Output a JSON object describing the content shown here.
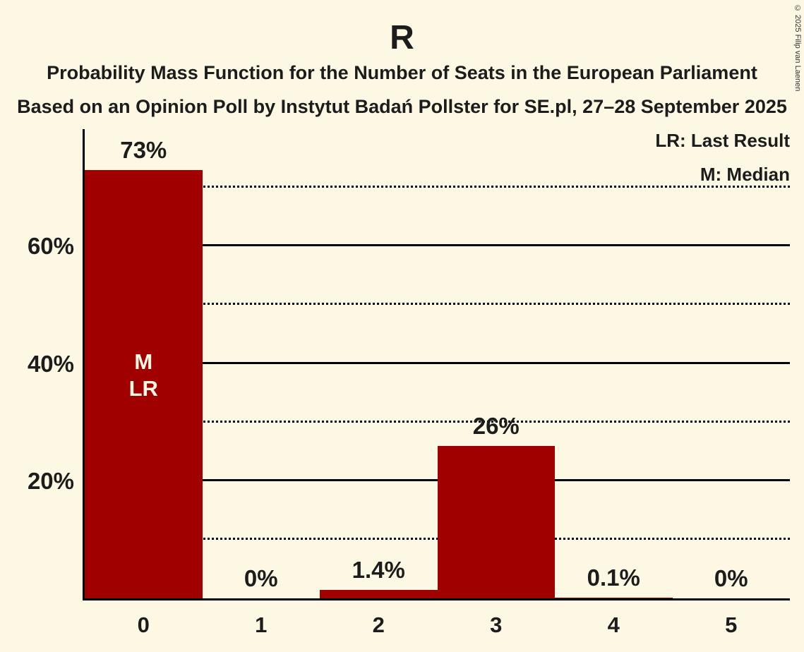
{
  "header": {
    "title": "R",
    "subtitle1": "Probability Mass Function for the Number of Seats in the European Parliament",
    "subtitle2": "Based on an Opinion Poll by Instytut Badań Pollster for SE.pl, 27–28 September 2025"
  },
  "legend": {
    "lr": "LR: Last Result",
    "m": "M: Median"
  },
  "copyright": "© 2025 Filip van Laenen",
  "colors": {
    "background": "#FCF8E3",
    "bar": "#A00000",
    "text": "#1C1C1C",
    "bar_label": "#FCF8E3"
  },
  "chart_data": {
    "type": "bar",
    "title": "R",
    "categories": [
      "0",
      "1",
      "2",
      "3",
      "4",
      "5"
    ],
    "values": [
      73,
      0,
      1.4,
      26,
      0.1,
      0
    ],
    "value_labels": [
      "73%",
      "0%",
      "1.4%",
      "26%",
      "0.1%",
      "0%"
    ],
    "ylim": [
      0,
      80
    ],
    "y_ticks": [
      {
        "value": 60,
        "label": "60%"
      },
      {
        "value": 40,
        "label": "40%"
      },
      {
        "value": 20,
        "label": "20%"
      }
    ],
    "gridlines": [
      {
        "value": 10,
        "style": "dotted"
      },
      {
        "value": 20,
        "style": "solid"
      },
      {
        "value": 30,
        "style": "dotted"
      },
      {
        "value": 40,
        "style": "solid"
      },
      {
        "value": 50,
        "style": "dotted"
      },
      {
        "value": 60,
        "style": "solid"
      },
      {
        "value": 70,
        "style": "dotted"
      }
    ],
    "annotation": {
      "category_index": 0,
      "lines": [
        "M",
        "LR"
      ],
      "center_value": 38
    },
    "legend_position": "top-right",
    "grid": true
  }
}
